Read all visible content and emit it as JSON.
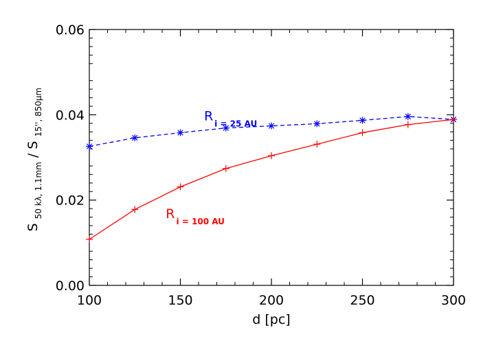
{
  "chart_data": {
    "type": "line",
    "xlabel": "d [pc]",
    "ylabel": {
      "s1": "S",
      "s1_sub": "50 kλ, 1.1mm",
      "slash": " / ",
      "s2": "S",
      "s2_sub": "15'', 850μm"
    },
    "xlim": [
      100,
      300
    ],
    "ylim": [
      0.0,
      0.06
    ],
    "x_ticks": [
      "100",
      "150",
      "200",
      "250",
      "300"
    ],
    "y_ticks": [
      "0.00",
      "0.02",
      "0.04",
      "0.06"
    ],
    "grid": false,
    "series": [
      {
        "label_main": "R",
        "label_sub": "i = 25 AU",
        "color": "#0000ff",
        "line_style": "dashed",
        "marker": "asterisk",
        "x": [
          100,
          125,
          150,
          175,
          200,
          225,
          250,
          275,
          300
        ],
        "values": [
          0.0326,
          0.0346,
          0.0358,
          0.0369,
          0.0374,
          0.0379,
          0.0387,
          0.0396,
          0.0389
        ]
      },
      {
        "label_main": "R",
        "label_sub": "i = 100 AU",
        "color": "#ff0000",
        "line_style": "solid",
        "marker": "plus",
        "x": [
          100,
          125,
          150,
          175,
          200,
          225,
          250,
          275,
          300
        ],
        "values": [
          0.0108,
          0.0178,
          0.0231,
          0.0274,
          0.0304,
          0.0331,
          0.0358,
          0.0377,
          0.0389
        ]
      }
    ]
  }
}
